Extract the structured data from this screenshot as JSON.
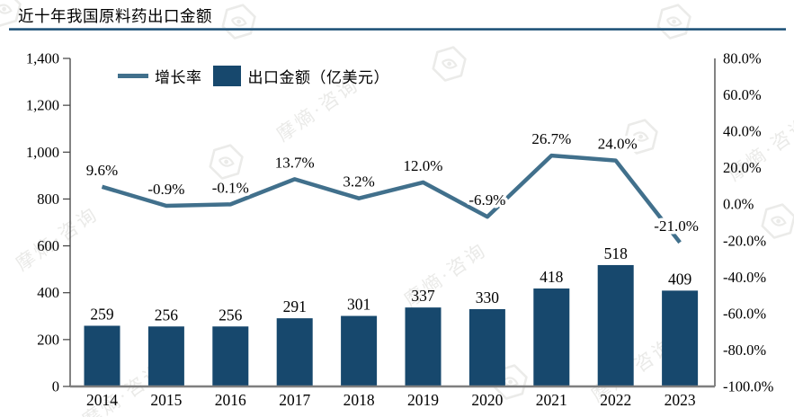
{
  "title": "近十年我国原料药出口金额",
  "watermark": {
    "text": "摩熵·咨询"
  },
  "legend": {
    "growth_rate_label": "增长率",
    "export_label": "出口金额（亿美元）"
  },
  "chart_data": {
    "type": "bar",
    "subtype": "combo-bar-line-dual-axis",
    "title": "近十年我国原料药出口金额",
    "categories": [
      "2014",
      "2015",
      "2016",
      "2017",
      "2018",
      "2019",
      "2020",
      "2021",
      "2022",
      "2023"
    ],
    "series": [
      {
        "name": "出口金额（亿美元）",
        "chart": "bar",
        "axis": "left",
        "values": [
          259,
          256,
          256,
          291,
          301,
          337,
          330,
          418,
          518,
          409
        ],
        "color": "#17486D"
      },
      {
        "name": "增长率",
        "chart": "line",
        "axis": "right",
        "unit": "%",
        "values": [
          9.6,
          -0.9,
          -0.1,
          13.7,
          3.2,
          12.0,
          -6.9,
          26.7,
          24.0,
          -21.0
        ],
        "labels": [
          "9.6%",
          "-0.9%",
          "-0.1%",
          "13.7%",
          "3.2%",
          "12.0%",
          "-6.9%",
          "26.7%",
          "24.0%",
          "-21.0%"
        ],
        "color": "#41708C"
      }
    ],
    "left_axis": {
      "min": 0,
      "max": 1400,
      "step": 200,
      "ticks": [
        "1,400",
        "1,200",
        "1,000",
        "800",
        "600",
        "400",
        "200",
        "0"
      ]
    },
    "right_axis": {
      "min": -100,
      "max": 80,
      "step": 20,
      "ticks": [
        "80.0%",
        "60.0%",
        "40.0%",
        "20.0%",
        "0.0%",
        "-20.0%",
        "-40.0%",
        "-60.0%",
        "-80.0%",
        "-100.0%"
      ]
    },
    "grid": false,
    "legend_position": "top-left"
  }
}
